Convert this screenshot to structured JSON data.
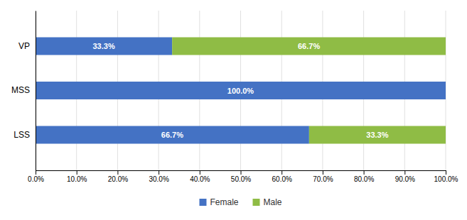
{
  "chart_data": {
    "type": "bar",
    "orientation": "horizontal",
    "stacked": true,
    "categories": [
      "LSS",
      "MSS",
      "VP"
    ],
    "series": [
      {
        "name": "Female",
        "color": "#4472C4",
        "values": [
          66.7,
          100.0,
          33.3
        ],
        "value_labels": [
          "66.7%",
          "100.0%",
          "33.3%"
        ]
      },
      {
        "name": "Male",
        "color": "#8FBC45",
        "values": [
          33.3,
          0.0,
          66.7
        ],
        "value_labels": [
          "33.3%",
          null,
          "66.7%"
        ]
      }
    ],
    "xlim": [
      0,
      100
    ],
    "xticks": [
      {
        "value": 0,
        "label": "0.0%"
      },
      {
        "value": 10,
        "label": "10.0%"
      },
      {
        "value": 20,
        "label": "20.0%"
      },
      {
        "value": 30,
        "label": "30.0%"
      },
      {
        "value": 40,
        "label": "40.0%"
      },
      {
        "value": 50,
        "label": "50.0%"
      },
      {
        "value": 60,
        "label": "60.0%"
      },
      {
        "value": 70,
        "label": "70.0%"
      },
      {
        "value": 80,
        "label": "80.0%"
      },
      {
        "value": 90,
        "label": "90.0%"
      },
      {
        "value": 100,
        "label": "100.0%"
      }
    ],
    "grid": true,
    "data_labels": true,
    "legend": "bottom"
  }
}
